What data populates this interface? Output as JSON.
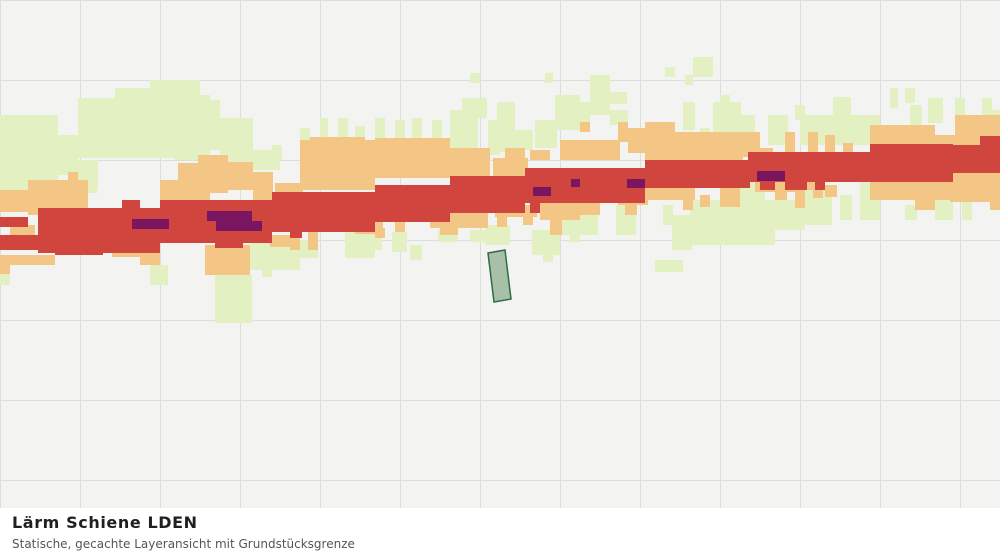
{
  "map": {
    "layer": "Lärm Schiene LDEN",
    "colors": {
      "background": "#f3f4f1",
      "grid": "#dcdedb",
      "band_lightgreen": "#e3f0c2",
      "band_orange": "#f4c685",
      "band_red": "#d1453f",
      "band_purple": "#7a1660",
      "parcel_fill": "#a8bfa8",
      "parcel_stroke": "#2e6b45"
    }
  },
  "caption": {
    "title": "Lärm Schiene LDEN",
    "subtitle": "Statische, gecachte Layeransicht mit Grundstücksgrenze"
  }
}
